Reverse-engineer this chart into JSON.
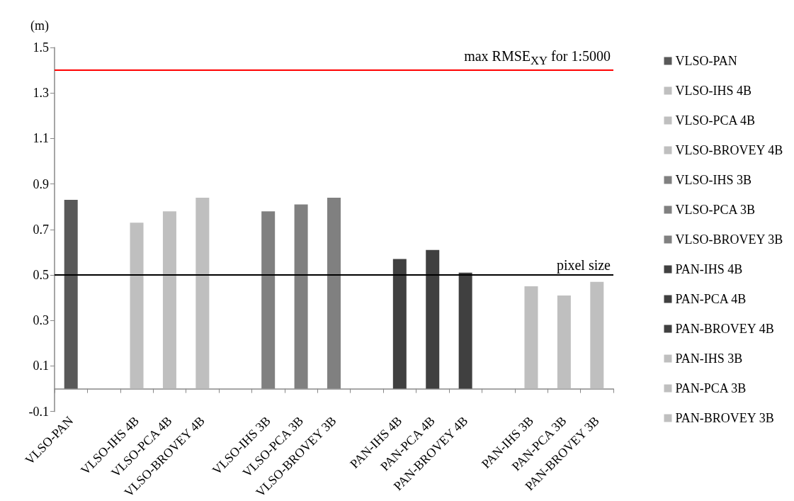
{
  "chart_data": {
    "type": "bar",
    "ylabel": "(m)",
    "categories": [
      "VLSO-PAN",
      null,
      "VLSO-IHS 4B",
      "VLSO-PCA 4B",
      "VLSO-BROVEY 4B",
      null,
      "VLSO-IHS 3B",
      "VLSO-PCA 3B",
      "VLSO-BROVEY 3B",
      null,
      "PAN-IHS 4B",
      "PAN-PCA 4B",
      "PAN-BROVEY 4B",
      null,
      "PAN-IHS 3B",
      "PAN-PCA 3B",
      "PAN-BROVEY 3B"
    ],
    "series": [
      {
        "name": "VLSO-PAN",
        "color": "#595959",
        "values": [
          0.83,
          null,
          null,
          null,
          null,
          null,
          null,
          null,
          null,
          null,
          null,
          null,
          null,
          null,
          null,
          null,
          null
        ]
      },
      {
        "name": "VLSO-IHS 4B",
        "color": "#bfbfbf",
        "values": [
          null,
          null,
          0.73,
          null,
          null,
          null,
          null,
          null,
          null,
          null,
          null,
          null,
          null,
          null,
          null,
          null,
          null
        ]
      },
      {
        "name": "VLSO-PCA 4B",
        "color": "#bfbfbf",
        "values": [
          null,
          null,
          null,
          0.78,
          null,
          null,
          null,
          null,
          null,
          null,
          null,
          null,
          null,
          null,
          null,
          null,
          null
        ]
      },
      {
        "name": "VLSO-BROVEY 4B",
        "color": "#bfbfbf",
        "values": [
          null,
          null,
          null,
          null,
          0.84,
          null,
          null,
          null,
          null,
          null,
          null,
          null,
          null,
          null,
          null,
          null,
          null
        ]
      },
      {
        "name": "VLSO-IHS 3B",
        "color": "#808080",
        "values": [
          null,
          null,
          null,
          null,
          null,
          null,
          0.78,
          null,
          null,
          null,
          null,
          null,
          null,
          null,
          null,
          null,
          null
        ]
      },
      {
        "name": "VLSO-PCA 3B",
        "color": "#808080",
        "values": [
          null,
          null,
          null,
          null,
          null,
          null,
          null,
          0.81,
          null,
          null,
          null,
          null,
          null,
          null,
          null,
          null,
          null
        ]
      },
      {
        "name": "VLSO-BROVEY 3B",
        "color": "#808080",
        "values": [
          null,
          null,
          null,
          null,
          null,
          null,
          null,
          null,
          0.84,
          null,
          null,
          null,
          null,
          null,
          null,
          null,
          null
        ]
      },
      {
        "name": "PAN-IHS 4B",
        "color": "#404040",
        "values": [
          null,
          null,
          null,
          null,
          null,
          null,
          null,
          null,
          null,
          null,
          0.57,
          null,
          null,
          null,
          null,
          null,
          null
        ]
      },
      {
        "name": "PAN-PCA 4B",
        "color": "#404040",
        "values": [
          null,
          null,
          null,
          null,
          null,
          null,
          null,
          null,
          null,
          null,
          null,
          0.61,
          null,
          null,
          null,
          null,
          null
        ]
      },
      {
        "name": "PAN-BROVEY 4B",
        "color": "#404040",
        "values": [
          null,
          null,
          null,
          null,
          null,
          null,
          null,
          null,
          null,
          null,
          null,
          null,
          0.51,
          null,
          null,
          null,
          null
        ]
      },
      {
        "name": "PAN-IHS 3B",
        "color": "#bfbfbf",
        "values": [
          null,
          null,
          null,
          null,
          null,
          null,
          null,
          null,
          null,
          null,
          null,
          null,
          null,
          null,
          0.45,
          null,
          null
        ]
      },
      {
        "name": "PAN-PCA 3B",
        "color": "#bfbfbf",
        "values": [
          null,
          null,
          null,
          null,
          null,
          null,
          null,
          null,
          null,
          null,
          null,
          null,
          null,
          null,
          null,
          0.41,
          null
        ]
      },
      {
        "name": "PAN-BROVEY 3B",
        "color": "#bfbfbf",
        "values": [
          null,
          null,
          null,
          null,
          null,
          null,
          null,
          null,
          null,
          null,
          null,
          null,
          null,
          null,
          null,
          null,
          0.47
        ]
      }
    ],
    "ylim": [
      -0.1,
      1.5
    ],
    "yticks": [
      -0.1,
      0.1,
      0.3,
      0.5,
      0.7,
      0.9,
      1.1,
      1.3,
      1.5
    ],
    "ref_lines": [
      {
        "axis": "y",
        "value": 1.4,
        "label": "max RMSE$_{XY}$ for 1:5000",
        "color": "#ff0000"
      },
      {
        "axis": "y",
        "value": 0.5,
        "label": "pixel size",
        "color": "#000000"
      }
    ],
    "grid": false,
    "legend": "right"
  }
}
